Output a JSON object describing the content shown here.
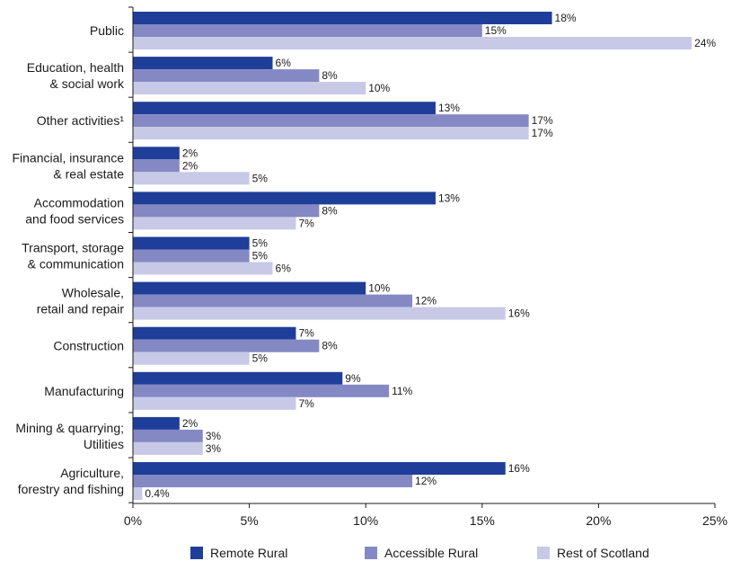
{
  "chart_data": {
    "type": "bar",
    "orientation": "horizontal",
    "categories": [
      [
        "Public"
      ],
      [
        "Education, health",
        "& social work"
      ],
      [
        "Other activities¹"
      ],
      [
        "Financial, insurance",
        "& real estate"
      ],
      [
        "Accommodation",
        "and food services"
      ],
      [
        "Transport, storage",
        "& communication"
      ],
      [
        "Wholesale,",
        "retail and repair"
      ],
      [
        "Construction"
      ],
      [
        "Manufacturing"
      ],
      [
        "Mining & quarrying;",
        "Utilities"
      ],
      [
        "Agriculture,",
        "forestry and fishing"
      ]
    ],
    "series": [
      {
        "name": "Remote Rural",
        "color": "#1f3e99",
        "values": [
          18,
          6,
          13,
          2,
          13,
          5,
          10,
          7,
          9,
          2,
          16
        ],
        "labels": [
          "18%",
          "6%",
          "13%",
          "2%",
          "13%",
          "5%",
          "10%",
          "7%",
          "9%",
          "2%",
          "16%"
        ]
      },
      {
        "name": "Accessible Rural",
        "color": "#8489c4",
        "values": [
          15,
          8,
          17,
          2,
          8,
          5,
          12,
          8,
          11,
          3,
          12
        ],
        "labels": [
          "15%",
          "8%",
          "17%",
          "2%",
          "8%",
          "5%",
          "12%",
          "8%",
          "11%",
          "3%",
          "12%"
        ]
      },
      {
        "name": "Rest of Scotland",
        "color": "#c8c9e6",
        "values": [
          24,
          10,
          17,
          5,
          7,
          6,
          16,
          5,
          7,
          3,
          0.4
        ],
        "labels": [
          "24%",
          "10%",
          "17%",
          "5%",
          "7%",
          "6%",
          "16%",
          "5%",
          "7%",
          "3%",
          "0.4%"
        ]
      }
    ],
    "xlim": [
      0,
      25
    ],
    "xticks": [
      0,
      5,
      10,
      15,
      20,
      25
    ],
    "xtick_labels": [
      "0%",
      "5%",
      "10%",
      "15%",
      "20%",
      "25%"
    ],
    "grid": false,
    "legend_position": "bottom"
  }
}
